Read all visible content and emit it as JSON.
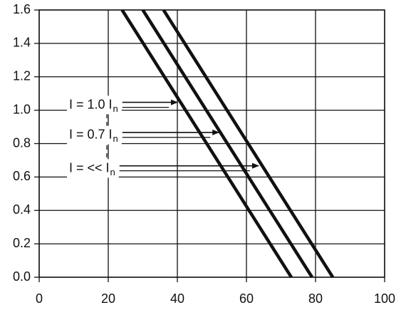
{
  "chart_data": {
    "type": "line",
    "series": [
      {
        "color": "#111111",
        "x": [
          24,
          73
        ],
        "y": [
          1.6,
          0
        ]
      },
      {
        "color": "#111111",
        "x": [
          30,
          79
        ],
        "y": [
          1.6,
          0
        ]
      },
      {
        "color": "#111111",
        "x": [
          36,
          85
        ],
        "y": [
          1.6,
          0
        ]
      }
    ],
    "xlim": [
      0,
      100
    ],
    "xticks": [
      0,
      20,
      40,
      60,
      80,
      100
    ],
    "ylim": [
      0,
      1.6
    ],
    "yticks": [
      {
        "value": 0,
        "label": "0.0"
      },
      0.2,
      0.4,
      0.6,
      0.8,
      {
        "value": 1,
        "label": "1.0"
      },
      1.2,
      1.4,
      1.6
    ],
    "grid": true,
    "annotations": [
      {
        "text": "I = 1.0 I",
        "subscript": "n",
        "x": 40,
        "y": 1.03
      },
      {
        "text": "I = 0.7 I",
        "subscript": "n",
        "x": 52,
        "y": 0.85
      },
      {
        "text": "I = << I",
        "subscript": "n",
        "x": 63.5,
        "y": 0.65
      }
    ]
  }
}
